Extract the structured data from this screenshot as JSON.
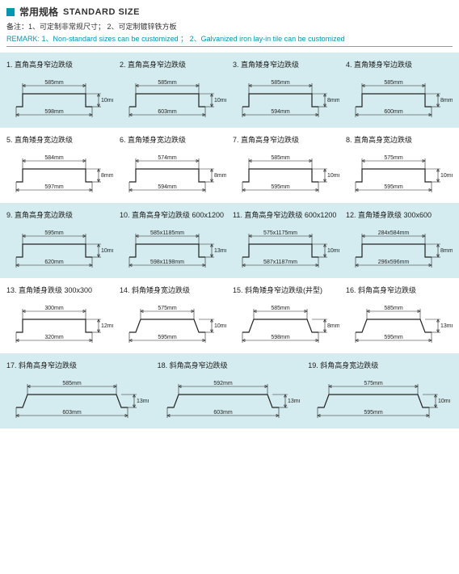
{
  "header": {
    "title_cn": "常用规格",
    "title_en": "STANDARD SIZE",
    "note_cn": "备注：1、可定制非常规尺寸； 2、可定制镀锌铁方板",
    "note_en": "REMARK: 1、Non-standard sizes can be customized ； 2、Galvanized iron lay-in tile can be customized"
  },
  "colors": {
    "tint": "#d4ecef",
    "accent": "#0097b2",
    "line": "#222222"
  },
  "items": [
    {
      "idx": "1.",
      "name": "直角高身窄边跌级",
      "style": "sq",
      "top": "585mm",
      "bot": "598mm",
      "h": "10mm"
    },
    {
      "idx": "2.",
      "name": "直角高身窄边跌级",
      "style": "sq",
      "top": "585mm",
      "bot": "603mm",
      "h": "10mm"
    },
    {
      "idx": "3.",
      "name": "直角矮身窄边跌级",
      "style": "sq",
      "top": "585mm",
      "bot": "594mm",
      "h": "8mm"
    },
    {
      "idx": "4.",
      "name": "直角矮身窄边跌级",
      "style": "sq",
      "top": "585mm",
      "bot": "600mm",
      "h": "8mm"
    },
    {
      "idx": "5.",
      "name": "直角矮身宽边跌级",
      "style": "sq",
      "top": "584mm",
      "bot": "597mm",
      "h": "8mm"
    },
    {
      "idx": "6.",
      "name": "直角矮身宽边跌级",
      "style": "sq",
      "top": "574mm",
      "bot": "594mm",
      "h": "8mm"
    },
    {
      "idx": "7.",
      "name": "直角高身窄边跌级",
      "style": "sq",
      "top": "585mm",
      "bot": "595mm",
      "h": "10mm"
    },
    {
      "idx": "8.",
      "name": "直角高身宽边跌级",
      "style": "sq",
      "top": "575mm",
      "bot": "595mm",
      "h": "10mm"
    },
    {
      "idx": "9.",
      "name": "直角高身宽边跌级",
      "style": "sq",
      "top": "595mm",
      "bot": "620mm",
      "h": "10mm"
    },
    {
      "idx": "10.",
      "name": "直角高身窄边跌级 600x1200",
      "style": "sq",
      "top": "585x1185mm",
      "bot": "598x1198mm",
      "h": "13mm"
    },
    {
      "idx": "11.",
      "name": "直角高身窄边跌级 600x1200",
      "style": "sq",
      "top": "575x1175mm",
      "bot": "587x1187mm",
      "h": "10mm"
    },
    {
      "idx": "12.",
      "name": "直角矮身跌级 300x600",
      "style": "sq",
      "top": "284x584mm",
      "bot": "296x596mm",
      "h": "8mm"
    },
    {
      "idx": "13.",
      "name": "直角矮身跌级 300x300",
      "style": "sq",
      "top": "300mm",
      "bot": "320mm",
      "h": "12mm"
    },
    {
      "idx": "14.",
      "name": "斜角矮身宽边跌级",
      "style": "bev",
      "top": "575mm",
      "bot": "595mm",
      "h": "10mm"
    },
    {
      "idx": "15.",
      "name": "斜角矮身窄边跌级(井型)",
      "style": "bev",
      "top": "585mm",
      "bot": "598mm",
      "h": "8mm"
    },
    {
      "idx": "16.",
      "name": "斜角高身窄边跌级",
      "style": "bev",
      "top": "585mm",
      "bot": "595mm",
      "h": "13mm"
    },
    {
      "idx": "17.",
      "name": "斜角高身窄边跌级",
      "style": "bev",
      "top": "585mm",
      "bot": "603mm",
      "h": "13mm"
    },
    {
      "idx": "18.",
      "name": "斜角高身窄边跌级",
      "style": "bev",
      "top": "592mm",
      "bot": "603mm",
      "h": "13mm"
    },
    {
      "idx": "19.",
      "name": "斜角高身宽边跌级",
      "style": "bev",
      "top": "575mm",
      "bot": "595mm",
      "h": "10mm"
    }
  ],
  "rows": [
    {
      "tint": true,
      "cols": 4,
      "from": 0,
      "to": 4
    },
    {
      "tint": false,
      "cols": 4,
      "from": 4,
      "to": 8
    },
    {
      "tint": true,
      "cols": 4,
      "from": 8,
      "to": 12
    },
    {
      "tint": false,
      "cols": 4,
      "from": 12,
      "to": 16
    },
    {
      "tint": true,
      "cols": 3,
      "from": 16,
      "to": 19
    }
  ]
}
